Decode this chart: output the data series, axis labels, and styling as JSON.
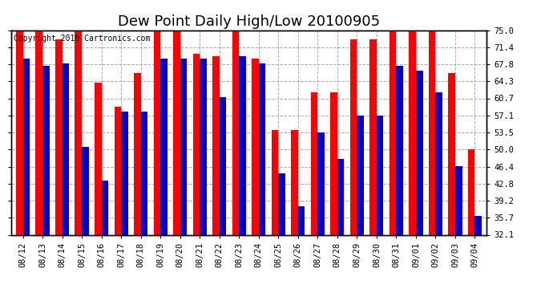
{
  "title": "Dew Point Daily High/Low 20100905",
  "copyright": "Copyright 2010 Cartronics.com",
  "dates": [
    "08/12",
    "08/13",
    "08/14",
    "08/15",
    "08/16",
    "08/17",
    "08/18",
    "08/19",
    "08/20",
    "08/21",
    "08/22",
    "08/23",
    "08/24",
    "08/25",
    "08/26",
    "08/27",
    "08/28",
    "08/29",
    "08/30",
    "08/31",
    "09/01",
    "09/02",
    "09/03",
    "09/04"
  ],
  "highs": [
    75.0,
    75.0,
    73.0,
    75.0,
    64.0,
    59.0,
    66.0,
    75.0,
    75.0,
    70.0,
    69.5,
    75.0,
    69.0,
    54.0,
    54.0,
    62.0,
    62.0,
    73.0,
    73.0,
    75.0,
    75.0,
    75.0,
    66.0,
    50.0
  ],
  "lows": [
    69.0,
    67.5,
    68.0,
    50.5,
    43.5,
    58.0,
    58.0,
    69.0,
    69.0,
    69.0,
    61.0,
    69.5,
    68.0,
    45.0,
    38.0,
    53.5,
    48.0,
    57.0,
    57.0,
    67.5,
    66.5,
    62.0,
    46.5,
    36.0
  ],
  "high_color": "#ff0000",
  "low_color": "#0000cc",
  "bg_color": "#ffffff",
  "plot_bg_color": "#ffffff",
  "grid_color": "#aaaaaa",
  "ymin": 32.1,
  "ymax": 75.0,
  "yticks": [
    32.1,
    35.7,
    39.2,
    42.8,
    46.4,
    50.0,
    53.5,
    57.1,
    60.7,
    64.3,
    67.8,
    71.4,
    75.0
  ],
  "title_fontsize": 13,
  "tick_fontsize": 7.5,
  "copyright_fontsize": 7
}
